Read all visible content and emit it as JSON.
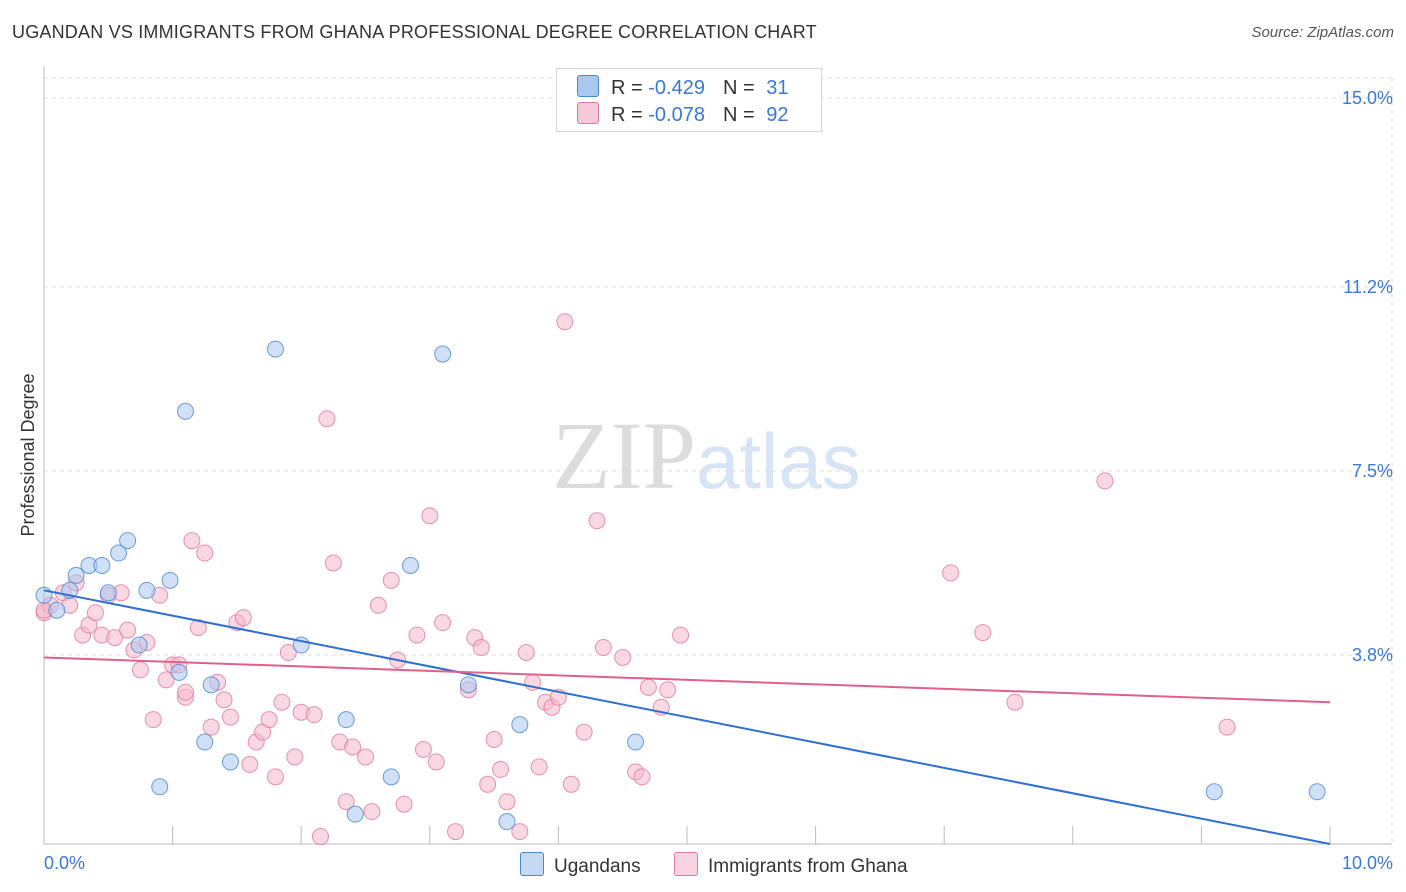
{
  "title": "UGANDAN VS IMMIGRANTS FROM GHANA PROFESSIONAL DEGREE CORRELATION CHART",
  "source": "Source: ZipAtlas.com",
  "watermark": {
    "part1": "ZIP",
    "part2": "atlas"
  },
  "legend": {
    "rows": [
      {
        "r_label": "R =",
        "r_value": "-0.429",
        "n_label": "N =",
        "n_value": "31",
        "color": "#a9c8f0"
      },
      {
        "r_label": "R =",
        "r_value": "-0.078",
        "n_label": "N =",
        "n_value": "92",
        "color": "#f5b8cb"
      }
    ]
  },
  "bottom_legend": [
    {
      "label": "Ugandans",
      "color": "#a9c8f0"
    },
    {
      "label": "Immigrants from Ghana",
      "color": "#f5b8cb"
    }
  ],
  "chart_data": {
    "type": "scatter",
    "ylabel": "Professional Degree",
    "xlim": [
      0,
      10
    ],
    "ylim": [
      0,
      15.4
    ],
    "x_tick_labels": [
      {
        "value": 0,
        "label": "0.0%"
      },
      {
        "value": 10,
        "label": "10.0%"
      }
    ],
    "y_tick_labels": [
      {
        "value": 3.8,
        "label": "3.8%"
      },
      {
        "value": 7.5,
        "label": "7.5%"
      },
      {
        "value": 11.2,
        "label": "11.2%"
      },
      {
        "value": 15.0,
        "label": "15.0%"
      }
    ],
    "colors": {
      "blue_fill": "#a9c8f0",
      "blue_stroke": "#4a86d6",
      "blue_line": "#2f6fd0",
      "pink_fill": "#f5b8cb",
      "pink_stroke": "#e07a9c",
      "pink_line": "#e0608c",
      "axis_text": "#3b78d8",
      "grid": "#dddddd"
    },
    "series": [
      {
        "name": "Ugandans",
        "trend": {
          "x": [
            0,
            10
          ],
          "y": [
            5.1,
            0.0
          ]
        },
        "points": [
          [
            0.0,
            5.0
          ],
          [
            0.1,
            4.7
          ],
          [
            0.2,
            5.1
          ],
          [
            0.25,
            5.4
          ],
          [
            0.35,
            5.6
          ],
          [
            0.45,
            5.6
          ],
          [
            0.5,
            5.05
          ],
          [
            0.58,
            5.85
          ],
          [
            0.65,
            6.1
          ],
          [
            0.74,
            4.0
          ],
          [
            0.8,
            5.1
          ],
          [
            0.98,
            5.3
          ],
          [
            1.05,
            3.45
          ],
          [
            1.1,
            8.7
          ],
          [
            1.3,
            3.2
          ],
          [
            1.25,
            2.05
          ],
          [
            1.45,
            1.65
          ],
          [
            1.8,
            9.95
          ],
          [
            2.0,
            4.0
          ],
          [
            2.35,
            2.5
          ],
          [
            2.42,
            0.6
          ],
          [
            2.7,
            1.35
          ],
          [
            2.85,
            5.6
          ],
          [
            3.1,
            9.85
          ],
          [
            3.3,
            3.2
          ],
          [
            3.6,
            0.45
          ],
          [
            3.7,
            2.4
          ],
          [
            4.6,
            2.05
          ],
          [
            9.1,
            1.05
          ],
          [
            0.9,
            1.15
          ],
          [
            9.9,
            1.05
          ]
        ]
      },
      {
        "name": "Immigrants from Ghana",
        "trend": {
          "x": [
            0,
            10
          ],
          "y": [
            3.75,
            2.85
          ]
        },
        "points": [
          [
            0.0,
            4.65
          ],
          [
            0.05,
            4.8
          ],
          [
            0.15,
            5.05
          ],
          [
            0.2,
            4.8
          ],
          [
            0.25,
            5.25
          ],
          [
            0.3,
            4.2
          ],
          [
            0.35,
            4.4
          ],
          [
            0.4,
            4.65
          ],
          [
            0.45,
            4.2
          ],
          [
            0.5,
            5.0
          ],
          [
            0.55,
            4.15
          ],
          [
            0.6,
            5.05
          ],
          [
            0.65,
            4.3
          ],
          [
            0.7,
            3.9
          ],
          [
            0.75,
            3.5
          ],
          [
            0.8,
            4.05
          ],
          [
            0.85,
            2.5
          ],
          [
            0.9,
            5.0
          ],
          [
            0.95,
            3.3
          ],
          [
            1.0,
            3.6
          ],
          [
            1.05,
            3.6
          ],
          [
            1.1,
            2.95
          ],
          [
            1.1,
            3.05
          ],
          [
            1.15,
            6.1
          ],
          [
            1.2,
            4.35
          ],
          [
            1.25,
            5.85
          ],
          [
            1.3,
            2.35
          ],
          [
            1.35,
            3.25
          ],
          [
            1.4,
            2.9
          ],
          [
            1.45,
            2.55
          ],
          [
            1.5,
            4.45
          ],
          [
            1.55,
            4.55
          ],
          [
            1.6,
            1.6
          ],
          [
            1.65,
            2.05
          ],
          [
            1.7,
            2.25
          ],
          [
            1.75,
            2.5
          ],
          [
            1.8,
            1.35
          ],
          [
            1.85,
            2.85
          ],
          [
            1.9,
            3.85
          ],
          [
            1.95,
            1.75
          ],
          [
            2.0,
            2.65
          ],
          [
            2.1,
            2.6
          ],
          [
            2.15,
            0.15
          ],
          [
            2.2,
            8.55
          ],
          [
            2.25,
            5.65
          ],
          [
            2.3,
            2.05
          ],
          [
            2.35,
            0.85
          ],
          [
            2.4,
            1.95
          ],
          [
            2.5,
            1.75
          ],
          [
            2.55,
            0.65
          ],
          [
            2.6,
            4.8
          ],
          [
            2.7,
            5.3
          ],
          [
            2.75,
            3.7
          ],
          [
            2.8,
            0.8
          ],
          [
            2.9,
            4.2
          ],
          [
            2.95,
            1.9
          ],
          [
            3.0,
            6.6
          ],
          [
            3.05,
            1.65
          ],
          [
            3.1,
            4.45
          ],
          [
            3.2,
            0.25
          ],
          [
            3.3,
            3.1
          ],
          [
            3.35,
            4.15
          ],
          [
            3.4,
            3.95
          ],
          [
            3.45,
            1.2
          ],
          [
            3.5,
            2.1
          ],
          [
            3.55,
            1.5
          ],
          [
            3.6,
            0.85
          ],
          [
            3.7,
            0.25
          ],
          [
            3.75,
            3.85
          ],
          [
            3.8,
            3.25
          ],
          [
            3.85,
            1.55
          ],
          [
            3.9,
            2.85
          ],
          [
            3.95,
            2.75
          ],
          [
            4.0,
            2.95
          ],
          [
            4.05,
            10.5
          ],
          [
            4.1,
            1.2
          ],
          [
            4.2,
            2.25
          ],
          [
            4.3,
            6.5
          ],
          [
            4.35,
            3.95
          ],
          [
            4.5,
            3.75
          ],
          [
            4.6,
            1.45
          ],
          [
            4.65,
            1.35
          ],
          [
            4.7,
            3.15
          ],
          [
            4.8,
            2.75
          ],
          [
            4.85,
            3.1
          ],
          [
            4.95,
            4.2
          ],
          [
            7.05,
            5.45
          ],
          [
            7.3,
            4.25
          ],
          [
            7.55,
            2.85
          ],
          [
            8.25,
            7.3
          ],
          [
            9.2,
            2.35
          ],
          [
            0.0,
            4.7
          ]
        ]
      }
    ]
  }
}
